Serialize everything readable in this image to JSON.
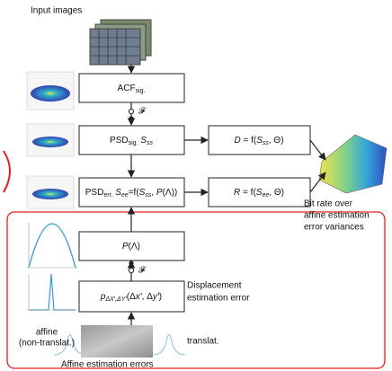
{
  "input_label": "Input images",
  "acf": [
    {
      "text": "ACF"
    },
    {
      "text": "sig.",
      "sub": true
    }
  ],
  "fourier_top": "𝓕",
  "psd_sig": [
    {
      "text": "PSD"
    },
    {
      "text": "sig.",
      "sub": true
    },
    {
      "text": " S",
      "italic": true
    },
    {
      "text": "ss",
      "sub": true,
      "italic": true
    }
  ],
  "d_block": [
    {
      "text": "D",
      "italic": true
    },
    {
      "text": " = f("
    },
    {
      "text": "S",
      "italic": true
    },
    {
      "text": "ss",
      "sub": true,
      "italic": true
    },
    {
      "text": ", Θ)"
    }
  ],
  "psd_err": [
    {
      "text": "PSD"
    },
    {
      "text": "err.",
      "sub": true
    },
    {
      "text": " S",
      "italic": true
    },
    {
      "text": "ee",
      "sub": true,
      "italic": true
    },
    {
      "text": "=f("
    },
    {
      "text": "S",
      "italic": true
    },
    {
      "text": "ss",
      "sub": true,
      "italic": true
    },
    {
      "text": ", "
    },
    {
      "text": "P",
      "italic": true
    },
    {
      "text": "(Λ))"
    }
  ],
  "r_block": [
    {
      "text": "R",
      "italic": true
    },
    {
      "text": " = f("
    },
    {
      "text": "S",
      "italic": true
    },
    {
      "text": "ee",
      "sub": true,
      "italic": true
    },
    {
      "text": ", Θ)"
    }
  ],
  "bit_rate_caption": [
    "Bit rate over",
    "affine estimation",
    "error variances"
  ],
  "p_lambda": [
    {
      "text": "P",
      "italic": true
    },
    {
      "text": "(Λ)"
    }
  ],
  "fourier_bottom": "𝓕",
  "p_block": [
    {
      "text": "p",
      "italic": true
    },
    {
      "text": "ΔX′,ΔY′",
      "sub": true,
      "italic": true
    },
    {
      "text": "(Δ"
    },
    {
      "text": "x′",
      "italic": true
    },
    {
      "text": ", Δ"
    },
    {
      "text": "y′",
      "italic": true
    },
    {
      "text": ")"
    }
  ],
  "displacement_caption": [
    "Displacement",
    "estimation error"
  ],
  "affine_label": [
    "affine",
    "(non-translat.)"
  ],
  "translat_label": "translat.",
  "bottom_caption": "Affine estimation errors"
}
